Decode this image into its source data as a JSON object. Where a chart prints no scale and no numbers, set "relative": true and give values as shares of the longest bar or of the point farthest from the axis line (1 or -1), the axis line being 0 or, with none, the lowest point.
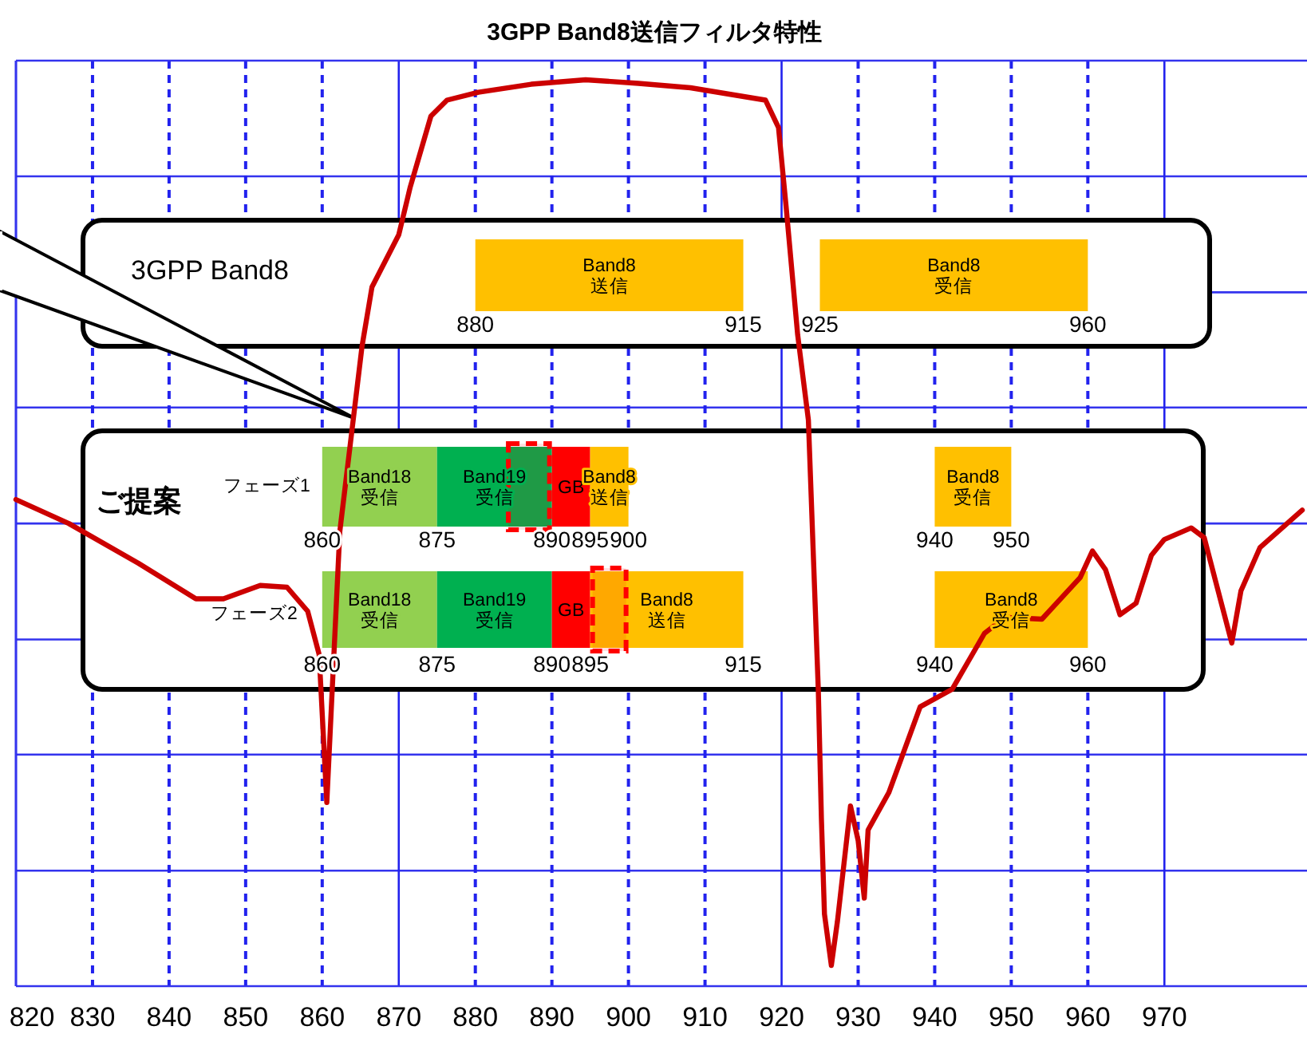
{
  "chart_data": {
    "type": "line",
    "title": "3GPP Band8送信フィルタ特性",
    "relative": true,
    "xlim": [
      820,
      988
    ],
    "xticks": [
      820,
      830,
      840,
      850,
      860,
      870,
      880,
      890,
      900,
      910,
      920,
      930,
      940,
      950,
      960,
      970
    ],
    "grid": "x",
    "ref_lines": [
      {
        "axis": "y",
        "value": 0.107,
        "color": "#3333ee"
      },
      {
        "axis": "y",
        "value": 0.238,
        "color": "#3333ee"
      },
      {
        "axis": "y",
        "value": 0.368,
        "color": "#3333ee"
      },
      {
        "axis": "y",
        "value": 0.499,
        "color": "#3333ee"
      },
      {
        "axis": "y",
        "value": 0.63,
        "color": "#3333ee"
      },
      {
        "axis": "y",
        "value": 0.76,
        "color": "#3333ee"
      },
      {
        "axis": "y",
        "value": 0.891,
        "color": "#3333ee"
      }
    ],
    "x": [
      820.0,
      826.9,
      836.0,
      843.5,
      847.1,
      851.9,
      855.4,
      858.1,
      859.6,
      860.6,
      861.3,
      862.3,
      865.2,
      866.5,
      870.0,
      871.5,
      874.2,
      876.3,
      880.4,
      887.3,
      894.4,
      901.3,
      908.1,
      917.9,
      919.6,
      920.6,
      922.1,
      923.5,
      924.8,
      925.2,
      925.6,
      926.5,
      927.3,
      929.0,
      930.0,
      930.8,
      931.3,
      934.0,
      938.1,
      942.3,
      946.5,
      949.2,
      954.0,
      959.0,
      960.6,
      962.3,
      964.2,
      966.3,
      968.3,
      970.0,
      973.5,
      975.2,
      978.8,
      980.0,
      982.5,
      988.0
    ],
    "series": [
      {
        "color": "#cc0000",
        "values": [
          0.526,
          0.499,
          0.454,
          0.414,
          0.414,
          0.429,
          0.427,
          0.4,
          0.351,
          0.184,
          0.31,
          0.49,
          0.699,
          0.766,
          0.825,
          0.879,
          0.959,
          0.977,
          0.986,
          0.995,
          1.0,
          0.996,
          0.991,
          0.977,
          0.946,
          0.856,
          0.712,
          0.616,
          0.31,
          0.166,
          0.058,
          0,
          0.05,
          0.18,
          0.141,
          0.076,
          0.153,
          0.195,
          0.292,
          0.312,
          0.375,
          0.393,
          0.391,
          0.438,
          0.468,
          0.447,
          0.396,
          0.409,
          0.463,
          0.481,
          0.494,
          0.483,
          0.364,
          0.423,
          0.472,
          0.514
        ]
      }
    ],
    "bands": [
      {
        "axis": "x",
        "from": 880,
        "to": 915,
        "label": "Band8\n送信",
        "color": "#ffc000"
      },
      {
        "axis": "x",
        "from": 925,
        "to": 960,
        "label": "Band8\n受信",
        "color": "#ffc000"
      },
      {
        "axis": "x",
        "from": 860,
        "to": 875,
        "label": "Band18\n受信",
        "color": "#92d050"
      },
      {
        "axis": "x",
        "from": 875,
        "to": 890,
        "label": "Band19\n受信",
        "color": "#00b050"
      },
      {
        "axis": "x",
        "from": 884,
        "to": 890,
        "color": "#ff0000"
      },
      {
        "axis": "x",
        "from": 890,
        "to": 895,
        "label": "GB",
        "color": "#ff0000"
      },
      {
        "axis": "x",
        "from": 895,
        "to": 900,
        "label": "Band8\n送信",
        "color": "#ffc000"
      },
      {
        "axis": "x",
        "from": 940,
        "to": 950,
        "label": "Band8\n受信",
        "color": "#ffc000"
      },
      {
        "axis": "x",
        "from": 860,
        "to": 875,
        "label": "Band18\n受信",
        "color": "#92d050"
      },
      {
        "axis": "x",
        "from": 875,
        "to": 890,
        "label": "Band19\n受信",
        "color": "#00b050"
      },
      {
        "axis": "x",
        "from": 890,
        "to": 895,
        "label": "GB",
        "color": "#ff0000"
      },
      {
        "axis": "x",
        "from": 895,
        "to": 915,
        "label": "Band8\n送信",
        "color": "#ffc000"
      },
      {
        "axis": "x",
        "from": 895,
        "to": 900,
        "color": "#ff0000"
      },
      {
        "axis": "x",
        "from": 940,
        "to": 960,
        "label": "Band8\n受信",
        "color": "#ffc000"
      }
    ],
    "annotations": [
      "3GPP Band8",
      "ご提案",
      "フェーズ1",
      "フェーズ2",
      "880",
      "915",
      "925",
      "960",
      "860",
      "875",
      "890",
      "895",
      "900",
      "940",
      "950",
      "860",
      "875",
      "890",
      "895",
      "915",
      "940",
      "960"
    ]
  }
}
